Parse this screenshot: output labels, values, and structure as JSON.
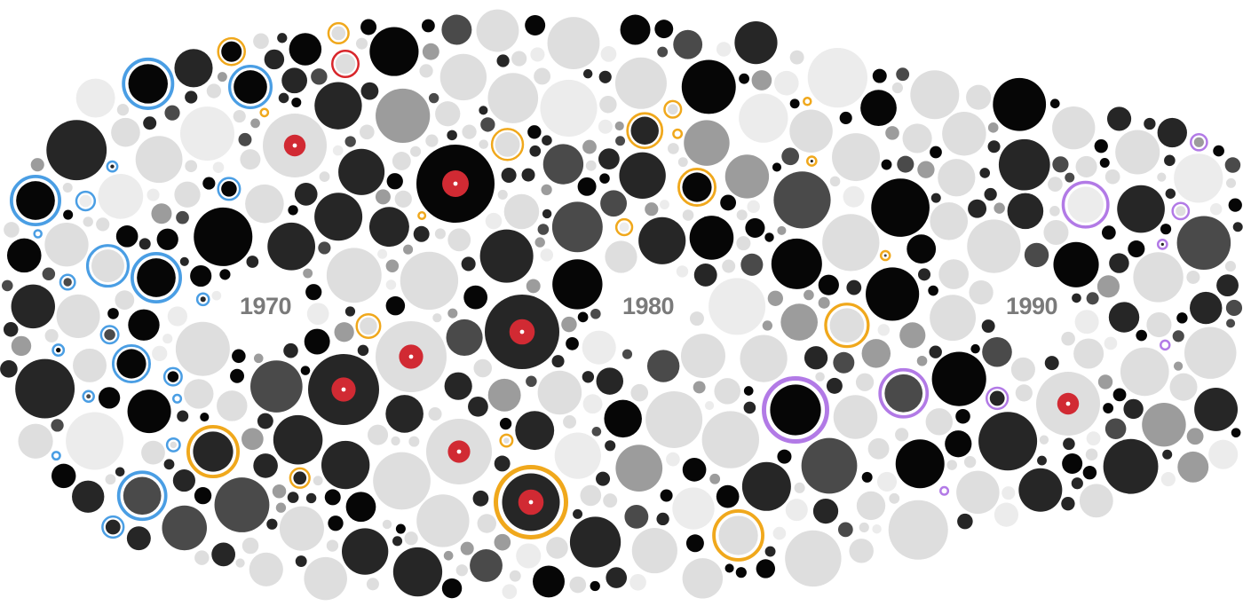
{
  "chart_data": {
    "type": "bubble-timeline",
    "title": "",
    "xlabel": "",
    "ylabel": "",
    "x_domain": [
      1961,
      1998
    ],
    "decade_labels": [
      "1970",
      "1980",
      "1990"
    ],
    "legend": null,
    "colors": {
      "background": "#ffffff",
      "fill_light": "#dedede",
      "fill_lighter": "#ececec",
      "fill_mid": "#9c9c9c",
      "fill_dark": "#4a4a4a",
      "fill_darker": "#262626",
      "fill_black": "#060606",
      "ring_blue": "#4a9ee4",
      "ring_gold": "#f0a81c",
      "ring_purple": "#b27ae6",
      "ring_red": "#d8262b",
      "record_label": "#d12a33",
      "record_hole": "#ffffff",
      "label_text": "#7a7a7a"
    },
    "highlights": [
      {
        "year": 1969.1,
        "size": 36,
        "tone": "light",
        "ring": "none",
        "record": true
      },
      {
        "year": 1972.4,
        "size": 44,
        "tone": "black",
        "ring": "none",
        "record": true
      },
      {
        "year": 1977.3,
        "size": 42,
        "tone": "darker",
        "ring": "none",
        "record": true
      },
      {
        "year": 1970.1,
        "size": 40,
        "tone": "darker",
        "ring": "none",
        "record": true
      },
      {
        "year": 1972.0,
        "size": 40,
        "tone": "light",
        "ring": "none",
        "record": true
      },
      {
        "year": 1972.2,
        "size": 37,
        "tone": "light",
        "ring": "none",
        "record": true
      },
      {
        "year": 1978.2,
        "size": 42,
        "tone": "darker",
        "ring": "gold",
        "record": true
      },
      {
        "year": 1994.0,
        "size": 36,
        "tone": "light",
        "ring": "none",
        "record": true
      },
      {
        "year": 1961.0,
        "size": 29,
        "tone": "black",
        "ring": "blue",
        "record": false
      },
      {
        "year": 1963.6,
        "size": 29,
        "tone": "black",
        "ring": "blue",
        "record": false
      },
      {
        "year": 1966.4,
        "size": 25,
        "tone": "black",
        "ring": "blue",
        "record": false
      },
      {
        "year": 1966.9,
        "size": 22,
        "tone": "black",
        "ring": "blue",
        "record": false
      },
      {
        "year": 1983.9,
        "size": 38,
        "tone": "black",
        "ring": "purple",
        "record": false
      },
      {
        "year": 1966.8,
        "size": 30,
        "tone": "darker",
        "ring": "gold",
        "record": false
      },
      {
        "year": 1981.2,
        "size": 22,
        "tone": "black",
        "ring": "gold",
        "record": false
      },
      {
        "year": 1973.0,
        "size": 16,
        "tone": "light",
        "ring": "red",
        "record": false
      }
    ]
  }
}
